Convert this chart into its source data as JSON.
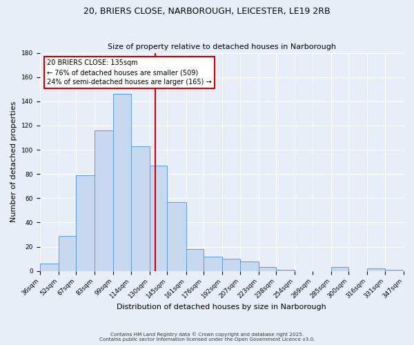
{
  "title": "20, BRIERS CLOSE, NARBOROUGH, LEICESTER, LE19 2RB",
  "subtitle": "Size of property relative to detached houses in Narborough",
  "xlabel": "Distribution of detached houses by size in Narborough",
  "ylabel": "Number of detached properties",
  "bin_edges": [
    36,
    52,
    67,
    83,
    99,
    114,
    130,
    145,
    161,
    176,
    192,
    207,
    223,
    238,
    254,
    269,
    285,
    300,
    316,
    331,
    347
  ],
  "bar_heights": [
    6,
    29,
    79,
    116,
    146,
    103,
    87,
    57,
    18,
    12,
    10,
    8,
    3,
    1,
    0,
    0,
    3,
    0,
    2,
    1
  ],
  "bar_color": "#c8d8f0",
  "bar_edge_color": "#5b9bd5",
  "vline_x": 135,
  "vline_color": "#cc0000",
  "annotation_title": "20 BRIERS CLOSE: 135sqm",
  "annotation_line2": "← 76% of detached houses are smaller (509)",
  "annotation_line3": "24% of semi-detached houses are larger (165) →",
  "annotation_box_color": "#ffffff",
  "annotation_box_edge": "#cc0000",
  "ylim": [
    0,
    180
  ],
  "yticks": [
    0,
    20,
    40,
    60,
    80,
    100,
    120,
    140,
    160,
    180
  ],
  "background_color": "#e8eef8",
  "grid_color": "#ffffff",
  "footer_line1": "Contains HM Land Registry data © Crown copyright and database right 2025.",
  "footer_line2": "Contains public sector information licensed under the Open Government Licence v3.0.",
  "title_fontsize": 9,
  "xlabel_fontsize": 8,
  "ylabel_fontsize": 8,
  "tick_fontsize": 6.5
}
